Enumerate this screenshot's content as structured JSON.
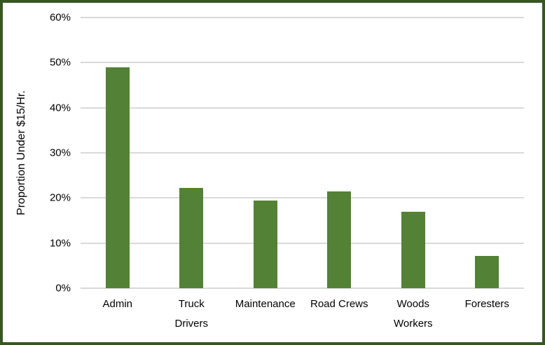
{
  "chart_data": {
    "type": "bar",
    "categories": [
      "Admin",
      "Truck\nDrivers",
      "Maintenance",
      "Road Crews",
      "Woods\nWorkers",
      "Foresters"
    ],
    "values": [
      49,
      22.3,
      19.5,
      21.5,
      17,
      7.2
    ],
    "ylabel": "Proportion Under $15/Hr.",
    "ylim": [
      0,
      60
    ],
    "ytick_values": [
      0,
      10,
      20,
      30,
      40,
      50,
      60
    ],
    "ytick_labels": [
      "0%",
      "10%",
      "20%",
      "30%",
      "40%",
      "50%",
      "60%"
    ],
    "grid": true,
    "legend": "none",
    "bar_color": "#538135",
    "gridline_color": "#D9D9D9",
    "axis_line_color": "#D9D9D9",
    "border_color": "#375623",
    "background": "#FFFFFF",
    "text_color": "#000000"
  }
}
